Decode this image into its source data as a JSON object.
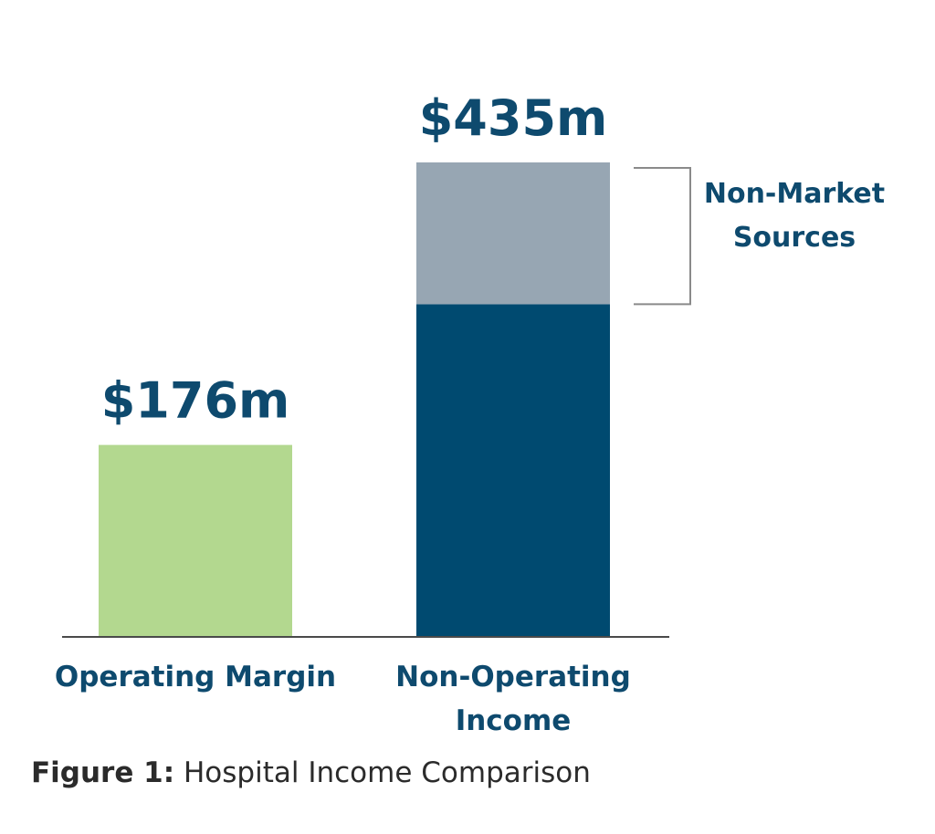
{
  "chart_data": {
    "type": "bar",
    "stacked": true,
    "categories": [
      "Operating Margin",
      "Non-Operating Income"
    ],
    "unit": "$m",
    "totals": [
      176,
      435
    ],
    "value_labels": [
      "$176m",
      "$435m"
    ],
    "segments": [
      {
        "category": "Operating Margin",
        "part": "total",
        "value": 176,
        "color": "#b3d88f"
      },
      {
        "category": "Non-Operating Income",
        "part": "base",
        "value": 305,
        "color": "#004a70"
      },
      {
        "category": "Non-Operating Income",
        "part": "Non-Market Sources",
        "value": 130,
        "color": "#97a6b3"
      }
    ],
    "annotation": {
      "lines": [
        "Non-Market",
        "Sources"
      ],
      "applies_to": "Non-Operating Income",
      "bracket_color": "#8a8a8a"
    },
    "ylim": [
      0,
      435
    ],
    "grid": false,
    "axes_visible": false,
    "title": "",
    "xlabel": "",
    "ylabel": ""
  },
  "colors": {
    "text_primary": "#0e4a6e",
    "baseline": "#4a4a4a",
    "caption_text": "#2b2b2b"
  },
  "caption": {
    "prefix": "Figure 1:",
    "text": " Hospital Income Comparison"
  }
}
